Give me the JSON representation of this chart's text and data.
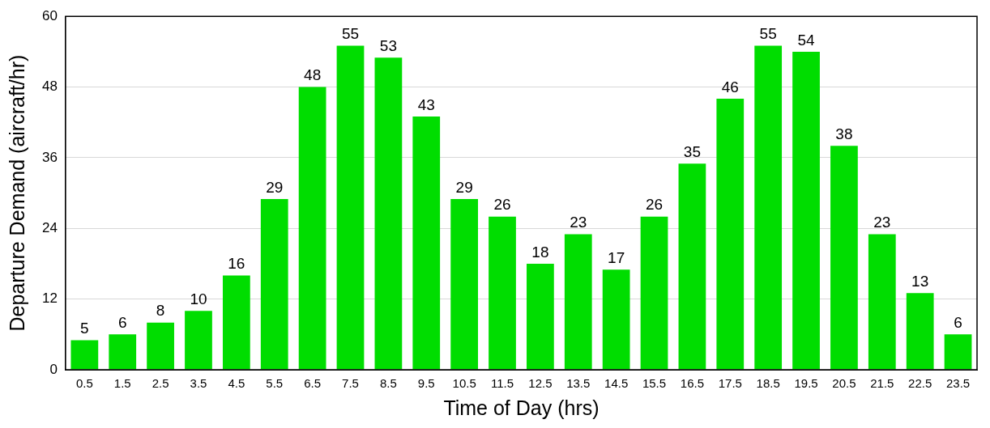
{
  "chart_data": {
    "type": "bar",
    "xlabel": "Time of Day (hrs)",
    "ylabel": "Departure Demand (aircraft/hr)",
    "categories": [
      "0.5",
      "1.5",
      "2.5",
      "3.5",
      "4.5",
      "5.5",
      "6.5",
      "7.5",
      "8.5",
      "9.5",
      "10.5",
      "11.5",
      "12.5",
      "13.5",
      "14.5",
      "15.5",
      "16.5",
      "17.5",
      "18.5",
      "19.5",
      "20.5",
      "21.5",
      "22.5",
      "23.5"
    ],
    "values": [
      5,
      6,
      8,
      10,
      16,
      29,
      48,
      55,
      53,
      43,
      29,
      26,
      18,
      23,
      17,
      26,
      35,
      46,
      55,
      54,
      38,
      23,
      13,
      6
    ],
    "color": "#00dd00",
    "ylim": [
      0,
      60
    ],
    "yticks": [
      0,
      12,
      24,
      36,
      48,
      60
    ],
    "grid": "y",
    "legend": false,
    "data_labels": true
  }
}
